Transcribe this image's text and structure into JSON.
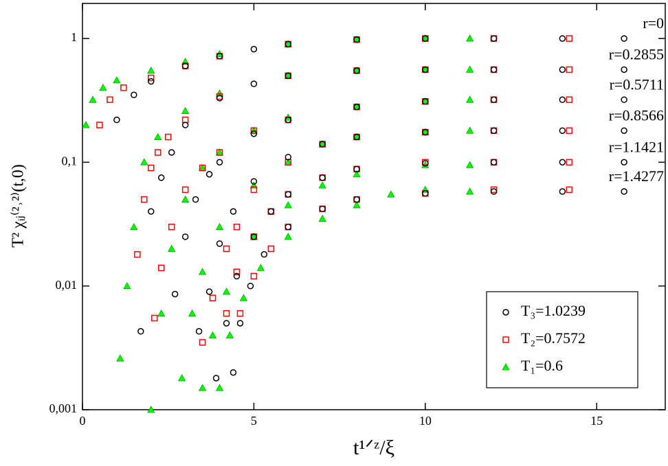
{
  "chart_data": {
    "type": "scatter",
    "log_y": true,
    "xlabel": "t¹ᐟᶻ/ξ",
    "ylabel": "T² χᵢⱼ⁽²˒²⁾(t,0)",
    "xlim": [
      0,
      17
    ],
    "ylim": [
      0.001,
      1.92
    ],
    "xticks": [
      0,
      5,
      10,
      15
    ],
    "yticks": [
      {
        "value": 0.001,
        "label": "0,001"
      },
      {
        "value": 0.01,
        "label": "0,01"
      },
      {
        "value": 0.1,
        "label": "0,1"
      },
      1
    ],
    "legend": "lower right",
    "annotations": [
      "r=0",
      "r=0.2855",
      "r=0.5711",
      "r=0.8566",
      "r=1.1421",
      "r=1.4277"
    ],
    "series": [
      {
        "name": "T₃=1.0239",
        "color": "#000000",
        "marker": "circle",
        "curves": [
          {
            "x": [
              1,
              1.5,
              2,
              3,
              4,
              5,
              6,
              8,
              10,
              12,
              14,
              15.8
            ],
            "values": [
              0.22,
              0.35,
              0.45,
              0.6,
              0.72,
              0.82,
              0.9,
              0.98,
              1,
              1,
              1,
              1
            ]
          },
          {
            "x": [
              1.7,
              2,
              2.3,
              2.6,
              3,
              4,
              5,
              6,
              8,
              10,
              12,
              14,
              15.8
            ],
            "values": [
              0.0043,
              0.04,
              0.075,
              0.12,
              0.2,
              0.33,
              0.43,
              0.5,
              0.55,
              0.56,
              0.56,
              0.56,
              0.56
            ]
          },
          {
            "x": [
              2.7,
              3,
              3.3,
              3.7,
              4,
              5,
              6,
              8,
              10,
              12,
              14,
              15.8
            ],
            "values": [
              0.0086,
              0.025,
              0.05,
              0.08,
              0.1,
              0.17,
              0.22,
              0.28,
              0.31,
              0.32,
              0.32,
              0.32
            ]
          },
          {
            "x": [
              3.4,
              3.7,
              4,
              4.4,
              5,
              6,
              7,
              8,
              10,
              12,
              14,
              15.8
            ],
            "values": [
              0.0043,
              0.009,
              0.022,
              0.04,
              0.07,
              0.11,
              0.14,
              0.16,
              0.175,
              0.18,
              0.18,
              0.18
            ]
          },
          {
            "x": [
              3.9,
              4.2,
              4.5,
              5,
              5.5,
              6,
              7,
              8,
              10,
              12,
              14,
              15.8
            ],
            "values": [
              0.0018,
              0.005,
              0.012,
              0.025,
              0.04,
              0.055,
              0.075,
              0.088,
              0.098,
              0.1,
              0.1,
              0.1
            ]
          },
          {
            "x": [
              4.4,
              4.6,
              4.9,
              5.3,
              6,
              7,
              8,
              10,
              12,
              14,
              15.8
            ],
            "values": [
              0.002,
              0.005,
              0.01,
              0.018,
              0.03,
              0.042,
              0.05,
              0.056,
              0.058,
              0.058,
              0.058
            ]
          }
        ]
      },
      {
        "name": "T₂=0.7572",
        "color": "#ff0000",
        "marker": "square",
        "curves": [
          {
            "x": [
              0.5,
              0.8,
              1.2,
              2,
              3,
              4,
              6,
              8,
              10,
              12,
              14.2
            ],
            "values": [
              0.2,
              0.32,
              0.4,
              0.48,
              0.6,
              0.72,
              0.9,
              0.98,
              1,
              1,
              1
            ]
          },
          {
            "x": [
              1.6,
              1.8,
              2,
              2.2,
              2.5,
              3,
              4,
              6,
              8,
              10,
              12,
              14.2
            ],
            "values": [
              0.018,
              0.05,
              0.09,
              0.12,
              0.16,
              0.22,
              0.34,
              0.5,
              0.55,
              0.56,
              0.56,
              0.56
            ]
          },
          {
            "x": [
              2.1,
              2.3,
              2.6,
              3,
              3.5,
              4,
              5,
              6,
              8,
              10,
              12,
              14.2
            ],
            "values": [
              0.0055,
              0.014,
              0.03,
              0.06,
              0.09,
              0.12,
              0.18,
              0.22,
              0.28,
              0.31,
              0.32,
              0.32
            ]
          },
          {
            "x": [
              3.5,
              3.8,
              4.2,
              4.5,
              5,
              6,
              7,
              8,
              10,
              12,
              14.2
            ],
            "values": [
              0.0035,
              0.008,
              0.02,
              0.03,
              0.06,
              0.1,
              0.14,
              0.16,
              0.175,
              0.18,
              0.18
            ]
          },
          {
            "x": [
              4.2,
              4.5,
              5,
              5.5,
              6,
              7,
              8,
              10,
              12,
              14.2
            ],
            "values": [
              0.006,
              0.013,
              0.025,
              0.04,
              0.055,
              0.075,
              0.088,
              0.1,
              0.1,
              0.1
            ]
          },
          {
            "x": [
              4.6,
              5,
              5.5,
              6,
              7,
              8,
              10,
              12,
              14.2
            ],
            "values": [
              0.006,
              0.012,
              0.02,
              0.03,
              0.042,
              0.05,
              0.056,
              0.06,
              0.06
            ]
          }
        ]
      },
      {
        "name": "T₁=0.6",
        "color": "#00ff00",
        "marker": "triangle",
        "curves": [
          {
            "x": [
              0.1,
              0.3,
              0.6,
              1,
              2,
              3,
              4,
              6,
              8,
              10,
              11.3
            ],
            "values": [
              0.2,
              0.32,
              0.4,
              0.46,
              0.55,
              0.65,
              0.75,
              0.9,
              0.98,
              1,
              1
            ]
          },
          {
            "x": [
              1.1,
              1.3,
              1.5,
              1.8,
              2.2,
              3,
              4,
              6,
              8,
              10,
              11.3
            ],
            "values": [
              0.0026,
              0.01,
              0.03,
              0.1,
              0.16,
              0.26,
              0.36,
              0.5,
              0.55,
              0.56,
              0.56
            ]
          },
          {
            "x": [
              2,
              2.3,
              2.6,
              3,
              3.5,
              4,
              5,
              6,
              8,
              10,
              11.3
            ],
            "values": [
              0.001,
              0.006,
              0.02,
              0.05,
              0.09,
              0.12,
              0.18,
              0.23,
              0.28,
              0.31,
              0.32
            ]
          },
          {
            "x": [
              2.9,
              3.2,
              3.5,
              4,
              5,
              6,
              7,
              8,
              10,
              11.3
            ],
            "values": [
              0.0018,
              0.006,
              0.013,
              0.03,
              0.065,
              0.1,
              0.14,
              0.16,
              0.175,
              0.18
            ]
          },
          {
            "x": [
              3.5,
              3.8,
              4.2,
              5,
              6,
              7,
              8,
              10,
              11.3
            ],
            "values": [
              0.0015,
              0.004,
              0.009,
              0.025,
              0.045,
              0.065,
              0.08,
              0.095,
              0.095
            ]
          },
          {
            "x": [
              4,
              4.3,
              4.7,
              5.2,
              6,
              7,
              8,
              9,
              10,
              11.3
            ],
            "values": [
              0.0015,
              0.004,
              0.008,
              0.014,
              0.025,
              0.035,
              0.045,
              0.055,
              0.06,
              0.058
            ]
          }
        ]
      }
    ]
  }
}
